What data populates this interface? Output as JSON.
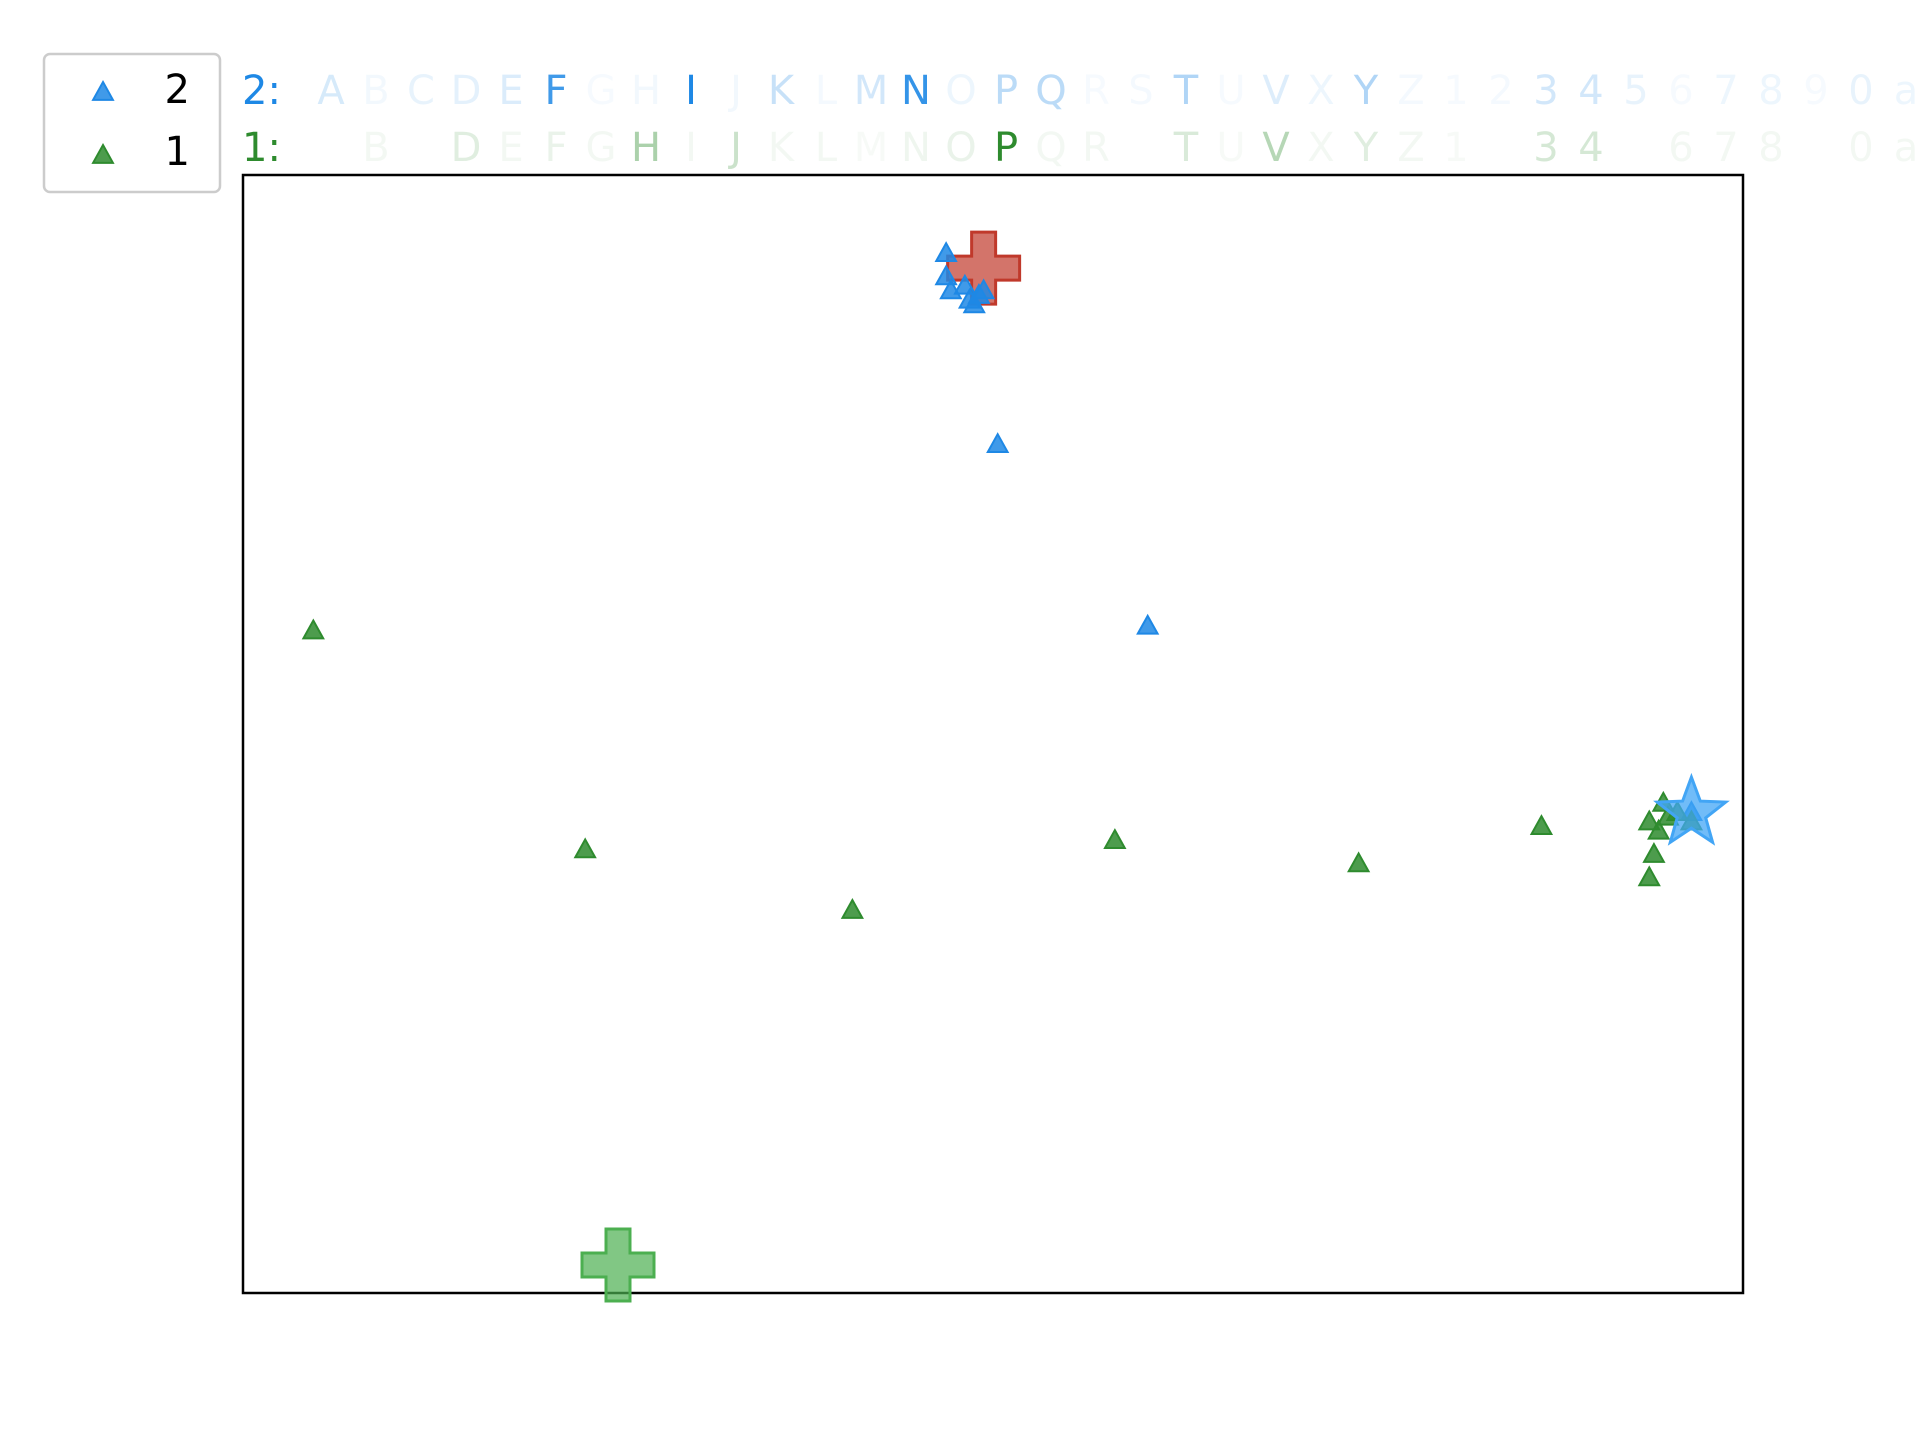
{
  "chart_data": {
    "type": "scatter",
    "title": "",
    "xlabel": "",
    "ylabel": "",
    "axes_ticks": "none",
    "grid": false,
    "xlim": [
      -1.6,
      1.6
    ],
    "ylim": [
      -1.2,
      1.2
    ],
    "legend": {
      "placement": "top-left",
      "entries": [
        {
          "label": "2",
          "color": "#1e88e5"
        },
        {
          "label": "1",
          "color": "#2e8b2e"
        }
      ]
    },
    "series": [
      {
        "name": "2",
        "color": "#1e88e5",
        "marker": "triangle",
        "points": [
          {
            "x": -0.1,
            "y": 1.03
          },
          {
            "x": -0.1,
            "y": 0.98
          },
          {
            "x": -0.09,
            "y": 0.95
          },
          {
            "x": -0.06,
            "y": 0.96
          },
          {
            "x": -0.05,
            "y": 0.93
          },
          {
            "x": -0.03,
            "y": 0.94
          },
          {
            "x": -0.04,
            "y": 0.92
          },
          {
            "x": -0.02,
            "y": 0.95
          },
          {
            "x": 0.01,
            "y": 0.62
          },
          {
            "x": 0.33,
            "y": 0.23
          },
          {
            "x": 1.49,
            "y": -0.17
          }
        ],
        "centroid": {
          "x": -0.02,
          "y": 1.0,
          "marker": "cross",
          "color": "#c0392b"
        }
      },
      {
        "name": "1",
        "color": "#2e8b2e",
        "marker": "triangle",
        "points": [
          {
            "x": -1.45,
            "y": 0.22
          },
          {
            "x": -0.87,
            "y": -0.25
          },
          {
            "x": -0.3,
            "y": -0.38
          },
          {
            "x": 0.26,
            "y": -0.23
          },
          {
            "x": 0.78,
            "y": -0.28
          },
          {
            "x": 1.17,
            "y": -0.2
          },
          {
            "x": 1.43,
            "y": -0.15
          },
          {
            "x": 1.4,
            "y": -0.19
          },
          {
            "x": 1.42,
            "y": -0.21
          },
          {
            "x": 1.41,
            "y": -0.26
          },
          {
            "x": 1.4,
            "y": -0.31
          },
          {
            "x": 1.44,
            "y": -0.18
          },
          {
            "x": 1.46,
            "y": -0.17
          },
          {
            "x": 1.49,
            "y": -0.19
          }
        ],
        "centroid": {
          "x": -0.8,
          "y": -1.14,
          "marker": "cross",
          "color": "#4caf50"
        }
      }
    ],
    "star_marker": {
      "x": 1.49,
      "y": -0.17,
      "color": "#42a5f5"
    },
    "letter_rows": {
      "alphabet": [
        "A",
        "B",
        "C",
        "D",
        "E",
        "F",
        "G",
        "H",
        "I",
        "J",
        "K",
        "L",
        "M",
        "N",
        "O",
        "P",
        "Q",
        "R",
        "S",
        "T",
        "U",
        "V",
        "X",
        "Y",
        "Z",
        "1",
        "2",
        "3",
        "4",
        "5",
        "6",
        "7",
        "8",
        "9",
        "0",
        "a"
      ],
      "rows": [
        {
          "label": "2:",
          "color": "#1e88e5",
          "opacity": [
            0.18,
            0.06,
            0.1,
            0.12,
            0.16,
            0.85,
            0.04,
            0.06,
            1.0,
            0.06,
            0.25,
            0.05,
            0.2,
            0.9,
            0.08,
            0.3,
            0.3,
            0.04,
            0.05,
            0.35,
            0.04,
            0.15,
            0.08,
            0.35,
            0.05,
            0.04,
            0.05,
            0.2,
            0.2,
            0.1,
            0.04,
            0.08,
            0.08,
            0.04,
            0.1,
            0.08
          ]
        },
        {
          "label": "1:",
          "color": "#2e8b2e",
          "opacity": [
            0.0,
            0.06,
            0.0,
            0.15,
            0.06,
            0.1,
            0.06,
            0.4,
            0.06,
            0.25,
            0.06,
            0.06,
            0.04,
            0.08,
            0.1,
            1.0,
            0.06,
            0.06,
            0.0,
            0.18,
            0.04,
            0.35,
            0.06,
            0.15,
            0.06,
            0.04,
            0.0,
            0.2,
            0.2,
            0.0,
            0.06,
            0.06,
            0.06,
            0.0,
            0.06,
            0.06
          ]
        }
      ]
    }
  }
}
